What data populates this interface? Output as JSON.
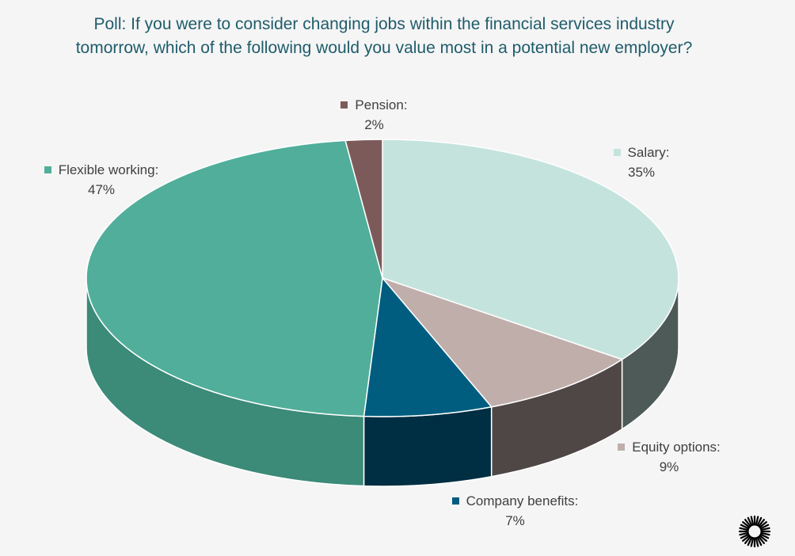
{
  "chart_data": {
    "type": "pie",
    "title": "Poll: If you were to consider changing jobs within the financial services industry tomorrow, which of the following would you value most in a potential new employer?",
    "slices": [
      {
        "label": "Salary:",
        "value": 35,
        "value_text": "35%",
        "color": "#c5e3dd",
        "side_color": "#4d5a57"
      },
      {
        "label": "Equity options:",
        "value": 9,
        "value_text": "9%",
        "color": "#c0aeab",
        "side_color": "#4e4745"
      },
      {
        "label": "Company benefits:",
        "value": 7,
        "value_text": "7%",
        "color": "#005d80",
        "side_color": "#002e42"
      },
      {
        "label": "Flexible working:",
        "value": 47,
        "value_text": "47%",
        "color": "#50ae9a",
        "side_color": "#3c8a78"
      },
      {
        "label": "Pension:",
        "value": 2,
        "value_text": "2%",
        "color": "#7d5a5a",
        "side_color": "#4a3535"
      }
    ],
    "start": "12 o'clock",
    "direction": "clockwise",
    "style": "3d",
    "legend": "none"
  },
  "logo": {
    "icon": "sunburst-logo-icon"
  }
}
